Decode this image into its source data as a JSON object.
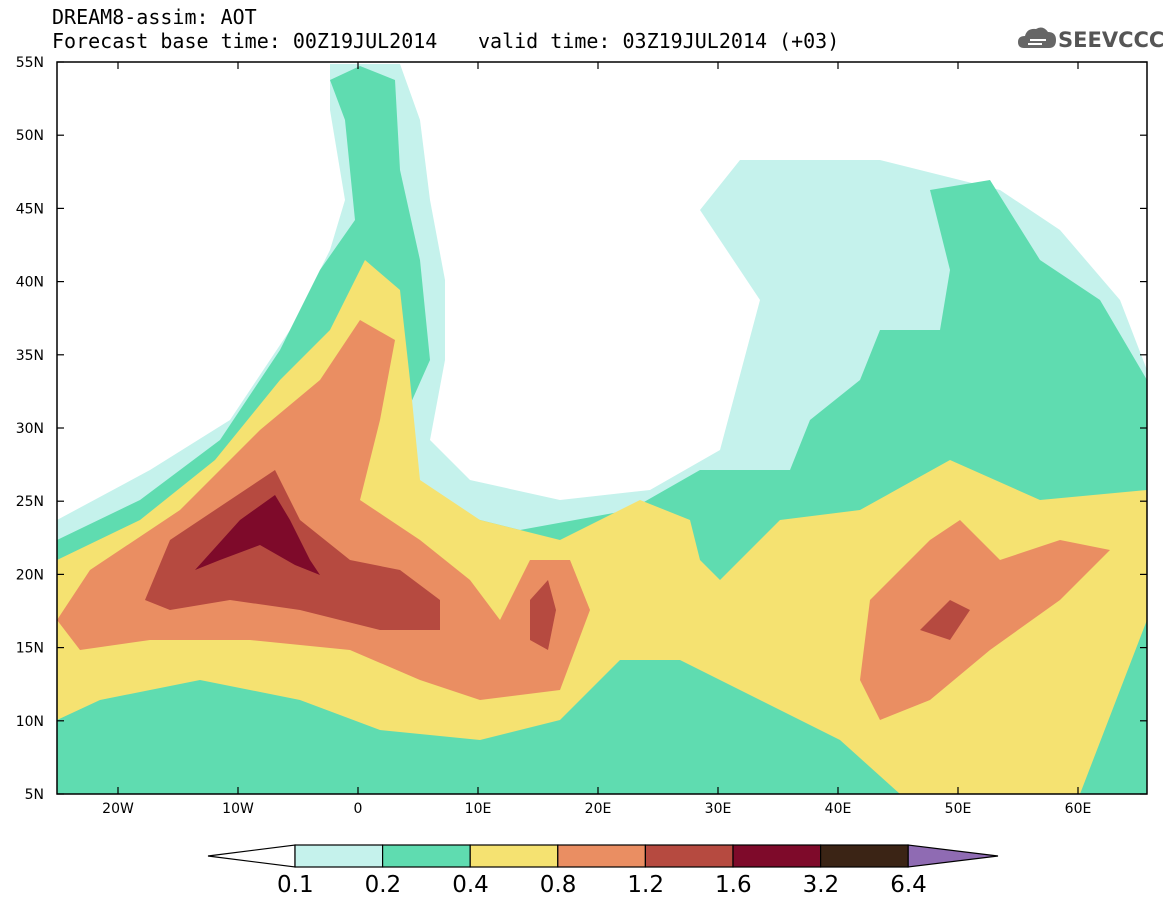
{
  "header": {
    "model": "DREAM8-assim: AOT",
    "base_time": "Forecast base time: 00Z19JUL2014",
    "valid_time": "valid time: 03Z19JUL2014 (+03)"
  },
  "logo": {
    "text": "SEEVCCC",
    "icon": "cloud-icon"
  },
  "map": {
    "lat_labels": [
      "55N",
      "50N",
      "45N",
      "40N",
      "35N",
      "30N",
      "25N",
      "20N",
      "15N",
      "10N",
      "5N"
    ],
    "lon_labels": [
      "20W",
      "10W",
      "0",
      "10E",
      "20E",
      "30E",
      "40E",
      "50E",
      "60E"
    ]
  },
  "colorbar": {
    "labels": [
      "0.1",
      "0.2",
      "0.4",
      "0.8",
      "1.2",
      "1.6",
      "3.2",
      "6.4"
    ],
    "colors": [
      "#c5f2ec",
      "#5fdcb0",
      "#f5e271",
      "#ea8e62",
      "#b64a40",
      "#7e0a2a",
      "#3b2415",
      "#8f6bb3"
    ],
    "min_arrow_color": "#ffffff",
    "max_arrow_color": "#8f6bb3"
  }
}
